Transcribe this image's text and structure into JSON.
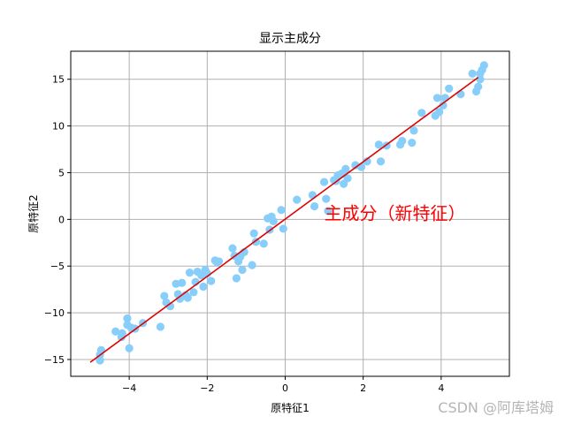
{
  "chart_data": {
    "type": "scatter",
    "title": "显示主成分",
    "xlabel": "原特征1",
    "ylabel": "原特征2",
    "xlim": [
      -5.5,
      5.75
    ],
    "ylim": [
      -16.8,
      18.0
    ],
    "xticks": [
      -4,
      -2,
      0,
      2,
      4
    ],
    "yticks": [
      -15,
      -10,
      -5,
      0,
      5,
      10,
      15
    ],
    "xtick_labels": [
      "−4",
      "−2",
      "0",
      "2",
      "4"
    ],
    "ytick_labels": [
      "−15",
      "−10",
      "−5",
      "0",
      "5",
      "10",
      "15"
    ],
    "grid": true,
    "colors": {
      "points": "#87cefa",
      "line": "#e00000",
      "annotation": "#ff0000",
      "grid": "#b0b0b0"
    },
    "points": {
      "x": [
        -4.75,
        -4.75,
        -4.72,
        -4.35,
        -4.2,
        -4.18,
        -4.05,
        -4.05,
        -4.0,
        -3.95,
        -3.85,
        -3.65,
        -3.2,
        -3.1,
        -3.05,
        -2.95,
        -2.8,
        -2.75,
        -2.7,
        -2.65,
        -2.55,
        -2.5,
        -2.45,
        -2.35,
        -2.3,
        -2.25,
        -2.15,
        -2.1,
        -2.05,
        -2.0,
        -1.9,
        -1.8,
        -1.75,
        -1.7,
        -1.35,
        -1.3,
        -1.25,
        -1.2,
        -1.15,
        -1.1,
        -1.05,
        -0.85,
        -0.8,
        -0.75,
        -0.55,
        -0.45,
        -0.4,
        -0.35,
        -0.3,
        -0.1,
        -0.05,
        0.3,
        0.7,
        0.75,
        1.0,
        1.05,
        1.1,
        1.25,
        1.3,
        1.35,
        1.45,
        1.5,
        1.55,
        1.6,
        1.8,
        1.95,
        2.1,
        2.4,
        2.45,
        2.6,
        2.95,
        3.0,
        3.25,
        3.3,
        3.5,
        3.85,
        3.9,
        3.95,
        4.05,
        4.1,
        4.2,
        4.5,
        4.8,
        4.9,
        4.95,
        5.0,
        5.0,
        5.05,
        5.1
      ],
      "y": [
        -15.1,
        -14.5,
        -14.0,
        -12.0,
        -12.6,
        -12.2,
        -10.6,
        -11.3,
        -13.8,
        -11.6,
        -11.7,
        -11.1,
        -11.5,
        -8.2,
        -8.9,
        -9.3,
        -6.9,
        -8.0,
        -8.5,
        -6.8,
        -8.1,
        -8.4,
        -5.7,
        -7.8,
        -6.7,
        -5.6,
        -6.0,
        -7.2,
        -5.4,
        -5.8,
        -6.6,
        -4.4,
        -4.6,
        -4.5,
        -3.1,
        -3.9,
        -6.3,
        -4.5,
        -4.0,
        -5.4,
        -3.5,
        -4.9,
        -1.5,
        -2.4,
        -2.6,
        0.1,
        -1.1,
        0.3,
        -0.2,
        1.0,
        -1.0,
        2.1,
        2.6,
        1.4,
        4.0,
        2.2,
        0.9,
        4.2,
        4.1,
        4.7,
        4.9,
        3.8,
        5.4,
        4.4,
        5.8,
        5.6,
        6.2,
        8.0,
        6.2,
        7.9,
        8.0,
        8.4,
        8.2,
        9.5,
        11.4,
        11.1,
        13.0,
        11.5,
        12.2,
        13.0,
        14.0,
        13.4,
        15.6,
        13.7,
        14.2,
        15.0,
        15.6,
        16.0,
        16.5
      ]
    },
    "principal_component": {
      "x": [
        -5.0,
        4.95
      ],
      "y": [
        -15.3,
        15.2
      ]
    },
    "annotation": {
      "text": "主成分（新特征）",
      "x": 1.0,
      "y": 0.0
    }
  },
  "watermark": "CSDN @阿库塔姆"
}
